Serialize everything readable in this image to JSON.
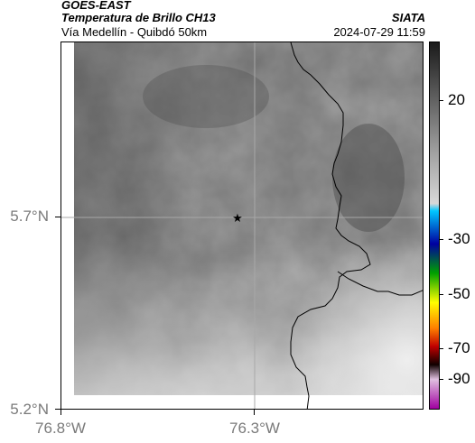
{
  "header": {
    "title": "GOES-EAST",
    "subtitle": "Temperatura de Brillo CH13",
    "region": "Vía Medellín - Quibdó 50km",
    "brand": "SIATA",
    "timestamp": "2024-07-29 11:59"
  },
  "axes": {
    "lat_labels": [
      "5.7°N",
      "5.2°N"
    ],
    "lon_labels": [
      "76.8°W",
      "76.3°W"
    ]
  },
  "colorbar": {
    "labels": [
      "20",
      "-30",
      "-50",
      "-70",
      "-90"
    ],
    "stops": [
      "#1a1a1a",
      "#5a5a5a",
      "#a0a0a0",
      "#d8d8d8",
      "#00c8ff",
      "#0000a0",
      "#00a000",
      "#ffff00",
      "#ff8000",
      "#c00000",
      "#100000",
      "#e0c0e0",
      "#a000a0"
    ]
  },
  "map": {
    "marker": "star-icon",
    "land_color": "#6e6e6e",
    "cloud_color": "#e8e8e8"
  }
}
